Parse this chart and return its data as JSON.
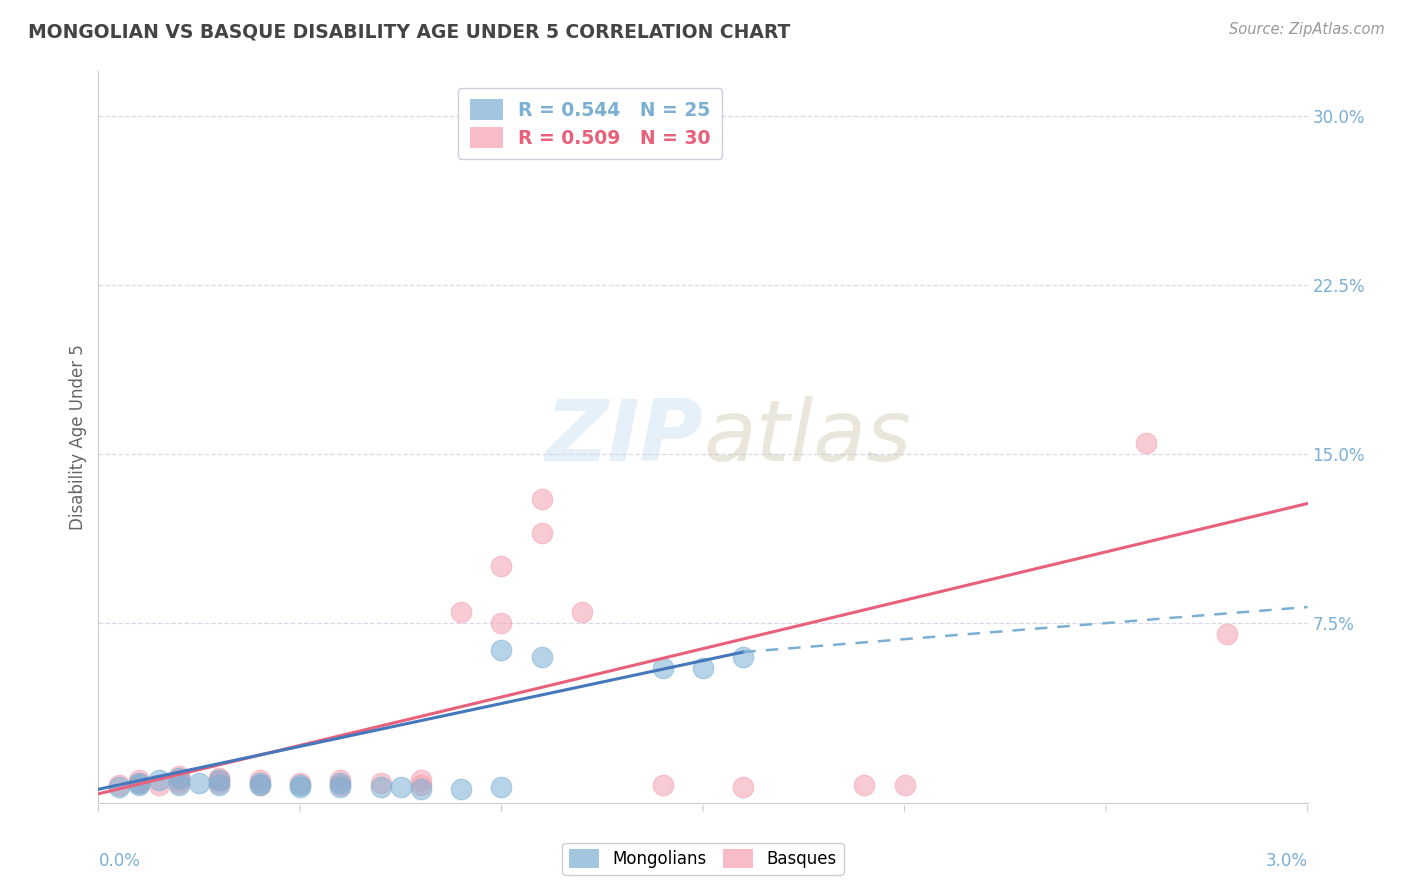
{
  "title": "MONGOLIAN VS BASQUE DISABILITY AGE UNDER 5 CORRELATION CHART",
  "source": "Source: ZipAtlas.com",
  "ylabel": "Disability Age Under 5",
  "xlim": [
    0.0,
    0.03
  ],
  "ylim": [
    -0.005,
    0.32
  ],
  "ytick_labels": [
    "7.5%",
    "15.0%",
    "22.5%",
    "30.0%"
  ],
  "ytick_values": [
    0.075,
    0.15,
    0.225,
    0.3
  ],
  "mongolian_R": "0.544",
  "mongolian_N": "25",
  "basque_R": "0.509",
  "basque_N": "30",
  "mongolian_color": "#7bafd4",
  "basque_color": "#f4a0b0",
  "mongolian_scatter": [
    [
      0.0005,
      0.002
    ],
    [
      0.001,
      0.003
    ],
    [
      0.001,
      0.004
    ],
    [
      0.0015,
      0.005
    ],
    [
      0.002,
      0.003
    ],
    [
      0.002,
      0.006
    ],
    [
      0.0025,
      0.004
    ],
    [
      0.003,
      0.003
    ],
    [
      0.003,
      0.005
    ],
    [
      0.004,
      0.004
    ],
    [
      0.004,
      0.003
    ],
    [
      0.005,
      0.003
    ],
    [
      0.005,
      0.002
    ],
    [
      0.006,
      0.002
    ],
    [
      0.006,
      0.004
    ],
    [
      0.007,
      0.002
    ],
    [
      0.0075,
      0.002
    ],
    [
      0.008,
      0.001
    ],
    [
      0.009,
      0.001
    ],
    [
      0.01,
      0.002
    ],
    [
      0.01,
      0.063
    ],
    [
      0.011,
      0.06
    ],
    [
      0.014,
      0.055
    ],
    [
      0.015,
      0.055
    ],
    [
      0.016,
      0.06
    ]
  ],
  "basque_scatter": [
    [
      0.0005,
      0.003
    ],
    [
      0.001,
      0.004
    ],
    [
      0.001,
      0.005
    ],
    [
      0.0015,
      0.003
    ],
    [
      0.002,
      0.004
    ],
    [
      0.002,
      0.005
    ],
    [
      0.002,
      0.007
    ],
    [
      0.003,
      0.004
    ],
    [
      0.003,
      0.005
    ],
    [
      0.003,
      0.006
    ],
    [
      0.004,
      0.003
    ],
    [
      0.004,
      0.005
    ],
    [
      0.005,
      0.004
    ],
    [
      0.006,
      0.003
    ],
    [
      0.006,
      0.005
    ],
    [
      0.007,
      0.004
    ],
    [
      0.008,
      0.003
    ],
    [
      0.008,
      0.005
    ],
    [
      0.009,
      0.08
    ],
    [
      0.01,
      0.075
    ],
    [
      0.01,
      0.1
    ],
    [
      0.011,
      0.115
    ],
    [
      0.011,
      0.13
    ],
    [
      0.012,
      0.08
    ],
    [
      0.014,
      0.003
    ],
    [
      0.016,
      0.002
    ],
    [
      0.019,
      0.003
    ],
    [
      0.02,
      0.003
    ],
    [
      0.026,
      0.155
    ],
    [
      0.028,
      0.07
    ]
  ],
  "mongolian_line_solid": [
    [
      0.0,
      0.001
    ],
    [
      0.016,
      0.062
    ]
  ],
  "mongolian_line_dashed": [
    [
      0.016,
      0.062
    ],
    [
      0.03,
      0.082
    ]
  ],
  "basque_line": [
    [
      0.0,
      -0.001
    ],
    [
      0.03,
      0.128
    ]
  ],
  "background_color": "#ffffff",
  "grid_color": "#d8d8e8",
  "title_color": "#444444",
  "axis_label_color": "#7bafd4",
  "right_tick_color": "#7bafd4"
}
